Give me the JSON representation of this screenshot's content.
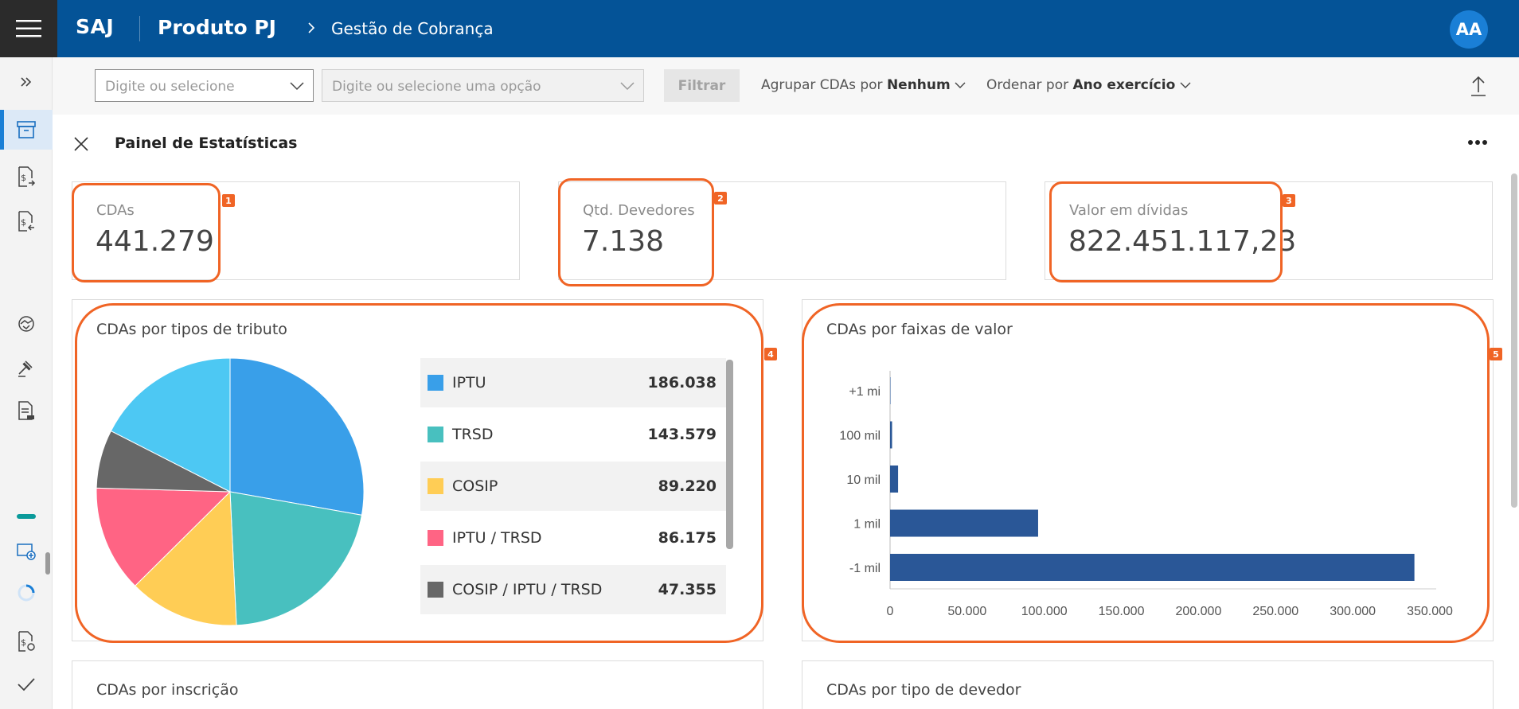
{
  "header": {
    "brand": "SAJ",
    "product": "Produto PJ",
    "breadcrumb": "Gestão de Cobrança",
    "avatar_initials": "AA"
  },
  "filters": {
    "select1_placeholder": "Digite ou selecione",
    "select2_placeholder": "Digite ou selecione uma opção",
    "filter_button": "Filtrar",
    "group_label": "Agrupar CDAs por",
    "group_value": "Nenhum",
    "order_label": "Ordenar por",
    "order_value": "Ano exercício"
  },
  "panel": {
    "title": "Painel de Estatísticas"
  },
  "stats": [
    {
      "label": "CDAs",
      "value": "441.279",
      "badge": "1"
    },
    {
      "label": "Qtd. Devedores",
      "value": "7.138",
      "badge": "2"
    },
    {
      "label": "Valor em dívidas",
      "value": "822.451.117,23",
      "badge": "3"
    }
  ],
  "pie_card": {
    "title": "CDAs por tipos de tributo",
    "badge": "4"
  },
  "bar_card": {
    "title": "CDAs por faixas de valor",
    "badge": "5"
  },
  "bottom_cards": {
    "left_title": "CDAs por inscrição",
    "right_title": "CDAs por tipo de devedor"
  },
  "colors": {
    "brand_blue": "#045397",
    "highlight": "#f06425",
    "bar": "#2a5797"
  },
  "chart_data": [
    {
      "type": "pie",
      "title": "CDAs por tipos de tributo",
      "slices": [
        {
          "name": "IPTU",
          "value": 186038,
          "label": "186.038",
          "color": "#399fe9"
        },
        {
          "name": "TRSD",
          "value": 143579,
          "label": "143.579",
          "color": "#48c0bf"
        },
        {
          "name": "COSIP",
          "value": 89220,
          "label": "89.220",
          "color": "#ffcd55"
        },
        {
          "name": "IPTU / TRSD",
          "value": 86175,
          "label": "86.175",
          "color": "#ff6484"
        },
        {
          "name": "COSIP / IPTU / TRSD",
          "value": 47355,
          "label": "47.355",
          "color": "#676767"
        },
        {
          "name": "",
          "value": 117000,
          "label": "",
          "color": "#4dc8f3"
        }
      ]
    },
    {
      "type": "bar",
      "orientation": "horizontal",
      "title": "CDAs por faixas de valor",
      "categories": [
        "+1 mi",
        "100 mil",
        "10 mil",
        "1 mil",
        "-1 mil"
      ],
      "values": [
        200,
        1300,
        5200,
        96000,
        340000
      ],
      "xticks": [
        "0",
        "50.000",
        "100.000",
        "150.000",
        "200.000",
        "250.000",
        "300.000",
        "350.000"
      ],
      "xlim": [
        0,
        350000
      ]
    }
  ]
}
